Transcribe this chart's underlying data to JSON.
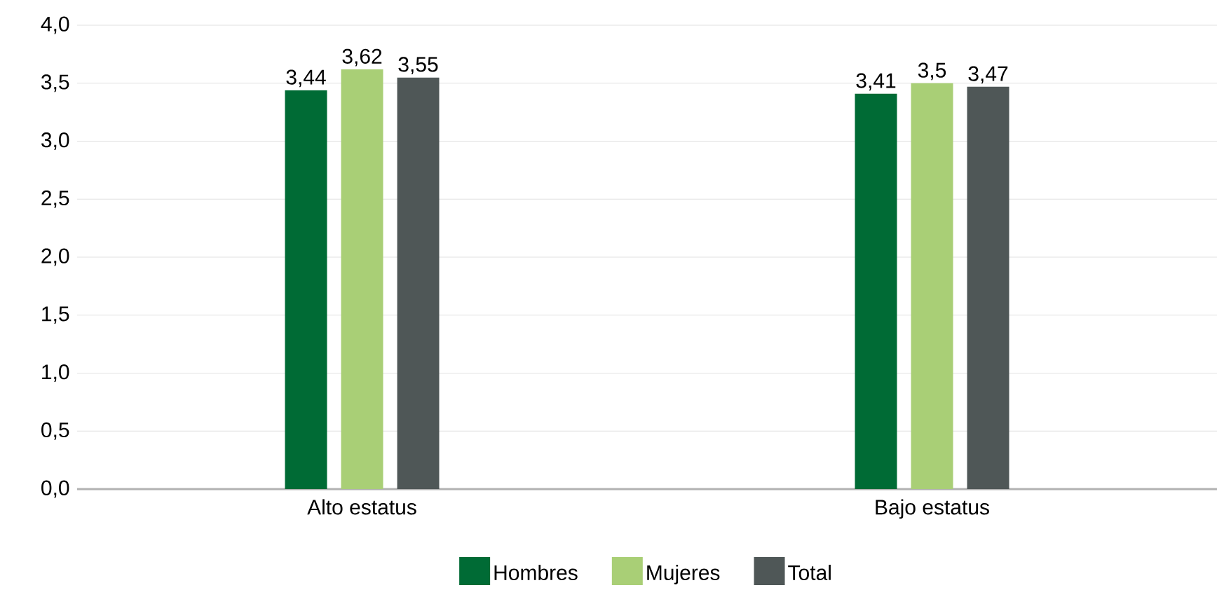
{
  "chart_data": {
    "type": "bar",
    "categories": [
      "Alto estatus",
      "Bajo estatus"
    ],
    "series": [
      {
        "name": "Hombres",
        "color": "#006b35",
        "values": [
          3.44,
          3.41
        ],
        "value_labels": [
          "3,44",
          "3,41"
        ]
      },
      {
        "name": "Mujeres",
        "color": "#a9cf76",
        "values": [
          3.62,
          3.5
        ],
        "value_labels": [
          "3,62",
          "3,5"
        ]
      },
      {
        "name": "Total",
        "color": "#4f5757",
        "values": [
          3.55,
          3.47
        ],
        "value_labels": [
          "3,55",
          "3,47"
        ]
      }
    ],
    "ylim": [
      0,
      4
    ],
    "yticks": [
      {
        "value": 0,
        "label": "0,0"
      },
      {
        "value": 0.5,
        "label": "0,5"
      },
      {
        "value": 1,
        "label": "1,0"
      },
      {
        "value": 1.5,
        "label": "1,5"
      },
      {
        "value": 2,
        "label": "2,0"
      },
      {
        "value": 2.5,
        "label": "2,5"
      },
      {
        "value": 3,
        "label": "3,0"
      },
      {
        "value": 3.5,
        "label": "3,5"
      },
      {
        "value": 4,
        "label": "4,0"
      }
    ],
    "grid": "y",
    "legend": "bottom"
  }
}
